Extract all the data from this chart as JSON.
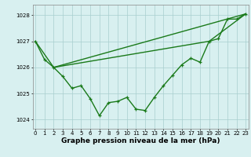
{
  "line1": {
    "x": [
      0,
      1,
      2,
      3,
      4,
      5,
      6,
      7,
      8,
      9,
      10,
      11,
      12,
      13,
      14,
      15,
      16,
      17,
      18,
      19,
      20,
      21,
      22,
      23
    ],
    "y": [
      1027.0,
      1026.3,
      1026.0,
      1025.65,
      1025.2,
      1025.3,
      1024.8,
      1024.15,
      1024.65,
      1024.7,
      1024.85,
      1024.4,
      1024.35,
      1024.85,
      1025.3,
      1025.7,
      1026.1,
      1026.35,
      1026.2,
      1027.0,
      1027.1,
      1027.85,
      1027.85,
      1028.05
    ],
    "color": "#1a7a1a",
    "linewidth": 1.0,
    "marker": "+"
  },
  "line2": {
    "x": [
      0,
      2,
      23
    ],
    "y": [
      1027.0,
      1026.0,
      1028.05
    ],
    "color": "#1a7a1a",
    "linewidth": 1.0
  },
  "line3": {
    "x": [
      2,
      19,
      23
    ],
    "y": [
      1026.0,
      1027.0,
      1028.05
    ],
    "color": "#1a7a1a",
    "linewidth": 1.0
  },
  "ylim": [
    1023.65,
    1028.4
  ],
  "yticks": [
    1024,
    1025,
    1026,
    1027,
    1028
  ],
  "xticks": [
    0,
    1,
    2,
    3,
    4,
    5,
    6,
    7,
    8,
    9,
    10,
    11,
    12,
    13,
    14,
    15,
    16,
    17,
    18,
    19,
    20,
    21,
    22,
    23
  ],
  "xlabel": "Graphe pression niveau de la mer (hPa)",
  "background_color": "#d8f0f0",
  "grid_color": "#a8cece",
  "line_color": "#1a7a1a",
  "tick_fontsize": 5.0,
  "xlabel_fontsize": 6.5
}
